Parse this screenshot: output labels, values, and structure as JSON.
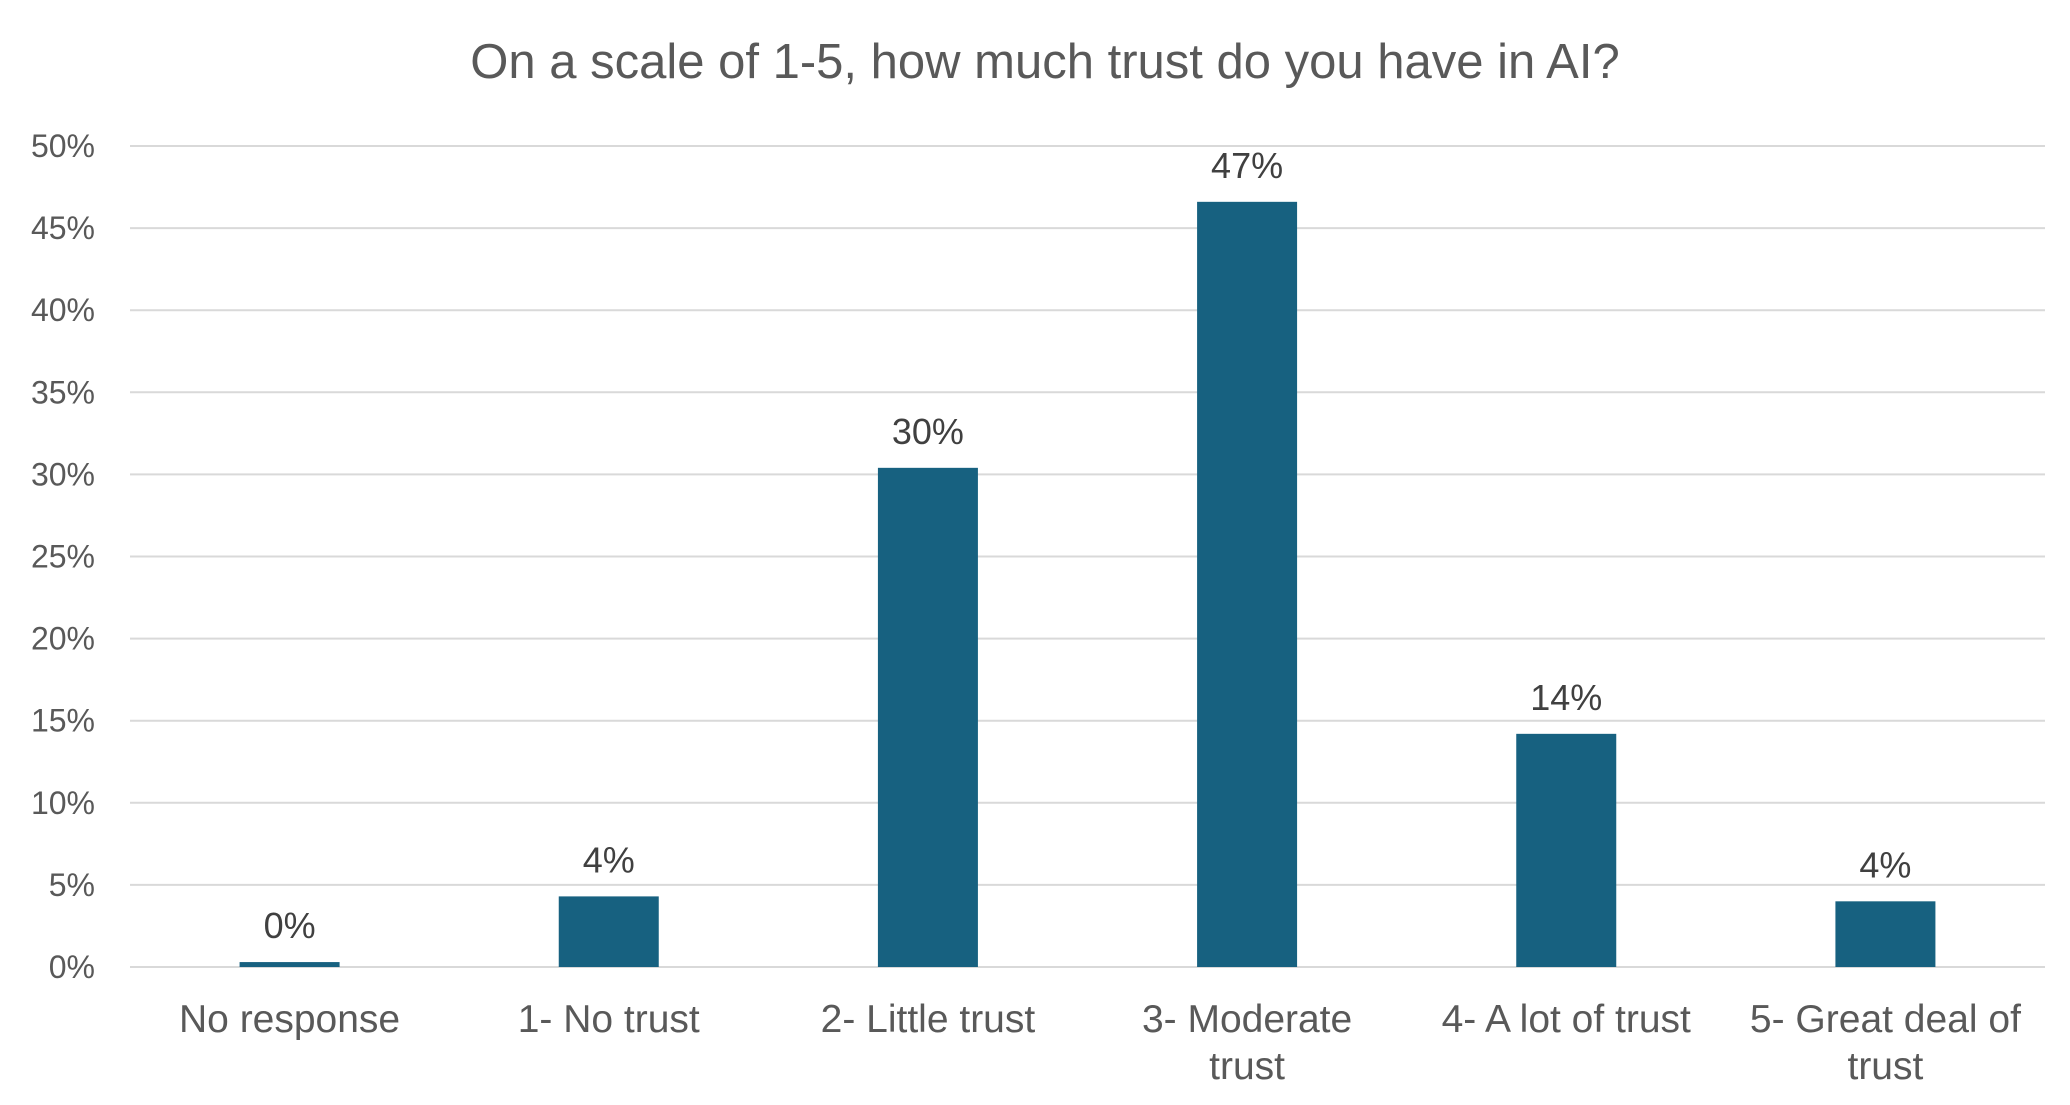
{
  "chart_data": {
    "type": "bar",
    "title": "On a scale of 1-5, how much trust do you have in AI?",
    "xlabel": "",
    "ylabel": "",
    "categories": [
      [
        "No response"
      ],
      [
        "1- No trust"
      ],
      [
        "2- Little trust"
      ],
      [
        "3- Moderate",
        "trust"
      ],
      [
        "4- A lot of trust"
      ],
      [
        "5- Great deal of",
        "trust"
      ]
    ],
    "values": [
      0.3,
      4.3,
      30.4,
      46.6,
      14.2,
      4.0
    ],
    "data_labels": [
      "0%",
      "4%",
      "30%",
      "47%",
      "14%",
      "4%"
    ],
    "ylim": [
      0,
      50
    ],
    "yticks": [
      0,
      5,
      10,
      15,
      20,
      25,
      30,
      35,
      40,
      45,
      50
    ],
    "ytick_labels": [
      "0%",
      "5%",
      "10%",
      "15%",
      "20%",
      "25%",
      "30%",
      "35%",
      "40%",
      "45%",
      "50%"
    ],
    "bar_color": "#176180",
    "grid": true,
    "legend": "none"
  }
}
